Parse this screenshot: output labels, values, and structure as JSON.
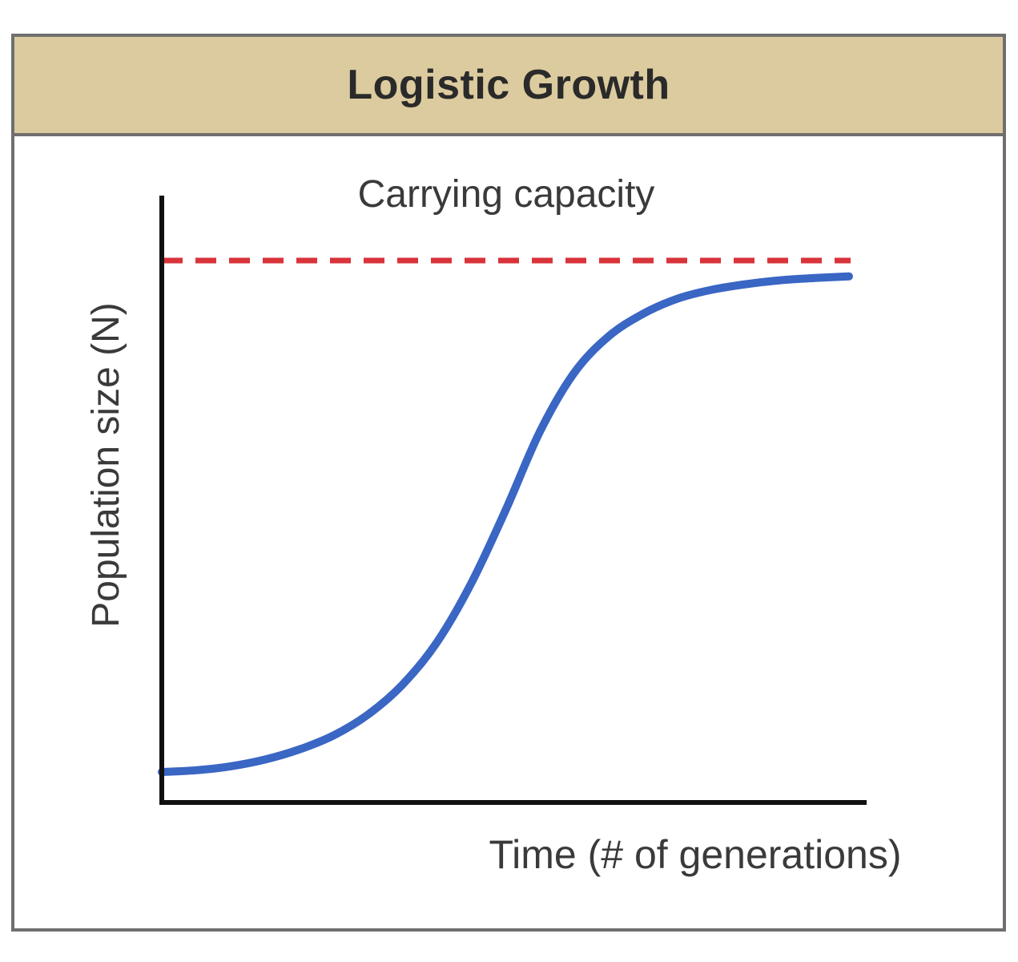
{
  "chart_data": {
    "type": "line",
    "title": "Logistic Growth",
    "xlabel": "Time (# of generations)",
    "ylabel": "Population size (N)",
    "xlim": [
      0,
      100
    ],
    "ylim": [
      0,
      100
    ],
    "grid": false,
    "annotations": [
      {
        "text": "Carrying capacity"
      }
    ],
    "reference_lines": [
      {
        "orientation": "horizontal",
        "y": 96,
        "style": "dashed",
        "color": "#d9333a"
      }
    ],
    "series": [
      {
        "color": "#3a66c4",
        "x": [
          0,
          5,
          10,
          15,
          20,
          25,
          30,
          35,
          40,
          45,
          50,
          55,
          60,
          65,
          70,
          75,
          80,
          85,
          90,
          95,
          100
        ],
        "y": [
          5,
          5.3,
          6,
          7.2,
          9,
          11.5,
          15.2,
          20.5,
          28,
          38.5,
          51.5,
          65.5,
          76,
          82.5,
          86.5,
          89.2,
          90.8,
          91.8,
          92.5,
          92.9,
          93.2
        ]
      }
    ]
  },
  "colors": {
    "title_bar": "#dccb9e",
    "frame_border": "#6f6f6f",
    "axis": "#111111",
    "curve": "#3a66c4",
    "capacity_line": "#d9333a",
    "text": "#3a3a3a"
  }
}
